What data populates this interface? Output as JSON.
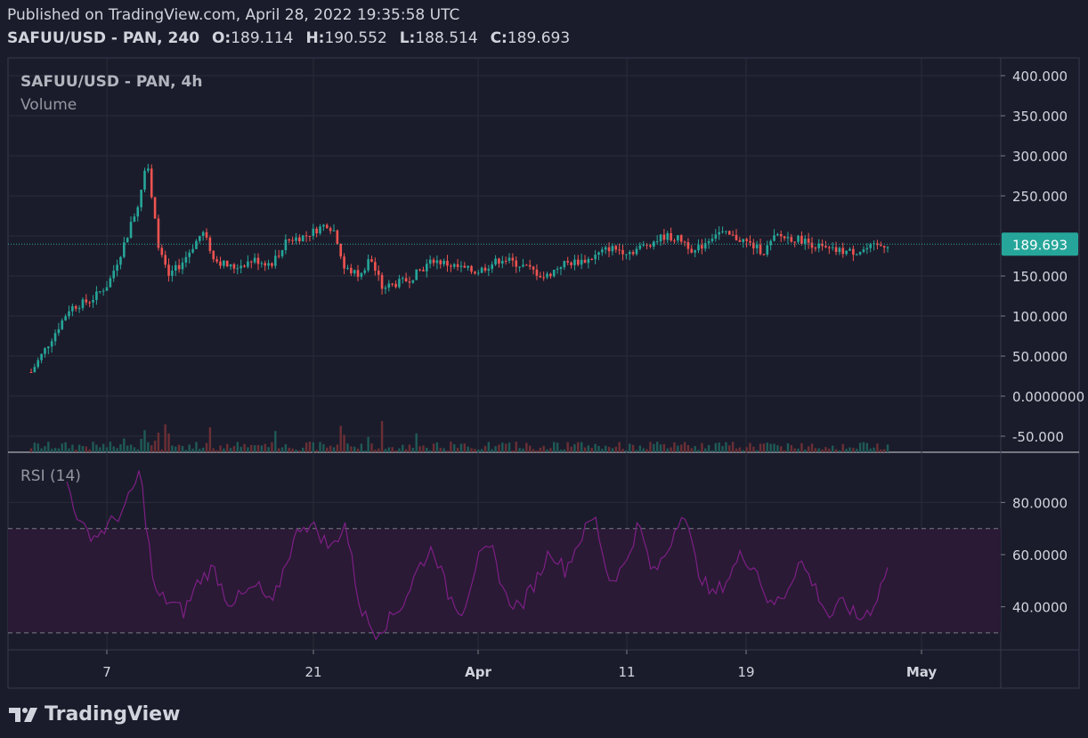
{
  "header": {
    "published": "Published on TradingView.com, April 28, 2022 19:35:58 UTC",
    "symbol": "SAFUU/USD - PAN, 240",
    "o_label": "O:",
    "o_value": "189.114",
    "h_label": "H:",
    "h_value": "190.552",
    "l_label": "L:",
    "l_value": "188.514",
    "c_label": "C:",
    "c_value": "189.693"
  },
  "main_pane": {
    "legend_symbol": "SAFUU/USD - PAN, 4h",
    "legend_volume": "Volume",
    "last_price_label": "189.693"
  },
  "rsi_pane": {
    "label": "RSI (14)"
  },
  "footer": {
    "brand": "TradingView"
  },
  "colors": {
    "background": "#1b1c2b",
    "grid": "#2a2b3a",
    "up": "#26a69a",
    "down": "#ef5350",
    "rsi_line": "#7e1f86",
    "rsi_band": "#2a1a35",
    "last_price": "#26a69a"
  },
  "chart_data": [
    {
      "type": "candlestick",
      "title": "SAFUU/USD - PAN, 4h",
      "y_ticks": [
        400,
        350,
        300,
        250,
        200,
        150,
        100,
        50,
        0,
        -50
      ],
      "y_tick_labels": [
        "400.000",
        "350.000",
        "300.000",
        "250.000",
        "",
        "150.000",
        "100.000",
        "50.0000",
        "0.0000000",
        "-50.000"
      ],
      "x_tick_labels": [
        "7",
        "21",
        "Apr",
        "11",
        "19",
        "May"
      ],
      "last_price": 189.693,
      "price_path": [
        {
          "t": 0,
          "v": 30
        },
        {
          "t": 0.02,
          "v": 65
        },
        {
          "t": 0.045,
          "v": 110
        },
        {
          "t": 0.07,
          "v": 120
        },
        {
          "t": 0.09,
          "v": 140
        },
        {
          "t": 0.105,
          "v": 180
        },
        {
          "t": 0.125,
          "v": 240
        },
        {
          "t": 0.135,
          "v": 300
        },
        {
          "t": 0.14,
          "v": 250
        },
        {
          "t": 0.15,
          "v": 180
        },
        {
          "t": 0.16,
          "v": 150
        },
        {
          "t": 0.175,
          "v": 165
        },
        {
          "t": 0.2,
          "v": 205
        },
        {
          "t": 0.215,
          "v": 170
        },
        {
          "t": 0.235,
          "v": 160
        },
        {
          "t": 0.26,
          "v": 170
        },
        {
          "t": 0.28,
          "v": 165
        },
        {
          "t": 0.3,
          "v": 195
        },
        {
          "t": 0.32,
          "v": 200
        },
        {
          "t": 0.345,
          "v": 215
        },
        {
          "t": 0.355,
          "v": 205
        },
        {
          "t": 0.365,
          "v": 160
        },
        {
          "t": 0.385,
          "v": 150
        },
        {
          "t": 0.395,
          "v": 175
        },
        {
          "t": 0.41,
          "v": 135
        },
        {
          "t": 0.44,
          "v": 145
        },
        {
          "t": 0.47,
          "v": 170
        },
        {
          "t": 0.5,
          "v": 160
        },
        {
          "t": 0.52,
          "v": 155
        },
        {
          "t": 0.55,
          "v": 172
        },
        {
          "t": 0.58,
          "v": 160
        },
        {
          "t": 0.6,
          "v": 148
        },
        {
          "t": 0.62,
          "v": 165
        },
        {
          "t": 0.65,
          "v": 170
        },
        {
          "t": 0.675,
          "v": 185
        },
        {
          "t": 0.7,
          "v": 180
        },
        {
          "t": 0.74,
          "v": 200
        },
        {
          "t": 0.76,
          "v": 195
        },
        {
          "t": 0.775,
          "v": 180
        },
        {
          "t": 0.8,
          "v": 205
        },
        {
          "t": 0.83,
          "v": 195
        },
        {
          "t": 0.855,
          "v": 180
        },
        {
          "t": 0.87,
          "v": 200
        },
        {
          "t": 0.9,
          "v": 195
        },
        {
          "t": 0.93,
          "v": 182
        },
        {
          "t": 0.96,
          "v": 180
        },
        {
          "t": 1.0,
          "v": 189.7
        }
      ]
    },
    {
      "type": "line",
      "title": "RSI (14)",
      "y_ticks": [
        80,
        60,
        40
      ],
      "y_tick_labels": [
        "80.0000",
        "60.0000",
        "40.0000"
      ],
      "upper_band": 70,
      "lower_band": 30,
      "series": [
        {
          "values": [
            88,
            70,
            67,
            72,
            78,
            92,
            45,
            42,
            38,
            50,
            55,
            42,
            44,
            48,
            40,
            58,
            72,
            70,
            62,
            72,
            40,
            30,
            35,
            42,
            55,
            63,
            45,
            38,
            58,
            62,
            43,
            40,
            50,
            62,
            54,
            66,
            75,
            50,
            55,
            72,
            52,
            62,
            78,
            55,
            44,
            50,
            60,
            55,
            40,
            45,
            58,
            48,
            36,
            42,
            35,
            40,
            55
          ]
        }
      ]
    }
  ]
}
